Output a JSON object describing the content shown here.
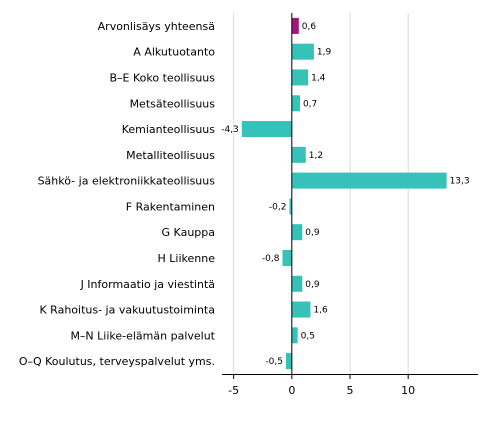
{
  "chart_data": {
    "type": "bar",
    "orientation": "horizontal",
    "categories": [
      "Arvonlisäys yhteensä",
      "A Alkutuotanto",
      "B–E Koko teollisuus",
      "Metsäteollisuus",
      "Kemianteollisuus",
      "Metalliteollisuus",
      "Sähkö- ja elektroniikkateollisuus",
      "F Rakentaminen",
      "G Kauppa",
      "H Liikenne",
      "J Informaatio ja viestintä",
      "K Rahoitus- ja vakuutustoiminta",
      "M–N Liike-elämän palvelut",
      "O–Q Koulutus, terveyspalvelut yms."
    ],
    "values": [
      0.6,
      1.9,
      1.4,
      0.7,
      -4.3,
      1.2,
      13.3,
      -0.2,
      0.9,
      -0.8,
      0.9,
      1.6,
      0.5,
      -0.5
    ],
    "value_labels": [
      "0,6",
      "1,9",
      "1,4",
      "0,7",
      "-4,3",
      "1,2",
      "13,3",
      "-0,2",
      "0,9",
      "-0,8",
      "0,9",
      "1,6",
      "0,5",
      "-0,5"
    ],
    "highlight_index": 0,
    "colors": {
      "bar": "#35c2b8",
      "highlight": "#a3157a",
      "grid": "#d9d9d9",
      "axis": "#000000"
    },
    "xlim": [
      -6,
      16
    ],
    "xticks": [
      -5,
      0,
      5,
      10
    ],
    "xtick_labels": [
      "-5",
      "0",
      "5",
      "10"
    ],
    "grid": "vertical",
    "title": "",
    "xlabel": "",
    "ylabel": ""
  }
}
